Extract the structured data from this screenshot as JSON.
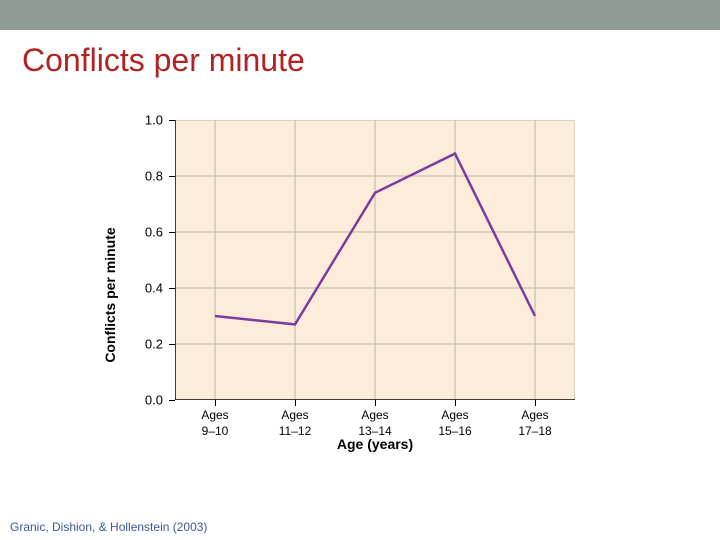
{
  "top_bar_color": "#8f9c93",
  "title": {
    "text": "Conflicts per minute",
    "color": "#b22222"
  },
  "citation": {
    "text": "Granic, Dishion, & Hollenstein (2003)",
    "color": "#3b5998"
  },
  "chart": {
    "type": "line",
    "plot_bg": "#fcecd9",
    "grid_color": "#b9b9a8",
    "axis_color": "#000000",
    "line_color": "#7b3ca0",
    "line_width": 2.5,
    "ylabel": "Conflicts per minute",
    "xlabel": "Age (years)",
    "ylabel_color": "#000000",
    "xlabel_color": "#000000",
    "ylim": [
      0.0,
      1.0
    ],
    "yticks": [
      0.0,
      0.2,
      0.4,
      0.6,
      0.8,
      1.0
    ],
    "ytick_labels": [
      "0.0",
      "0.2",
      "0.4",
      "0.6",
      "0.8",
      "1.0"
    ],
    "categories_line1": [
      "Ages",
      "Ages",
      "Ages",
      "Ages",
      "Ages"
    ],
    "categories_line2": [
      "9–10",
      "11–12",
      "13–14",
      "15–16",
      "17–18"
    ],
    "values": [
      0.3,
      0.27,
      0.74,
      0.88,
      0.3
    ],
    "tick_font_size": 13
  }
}
